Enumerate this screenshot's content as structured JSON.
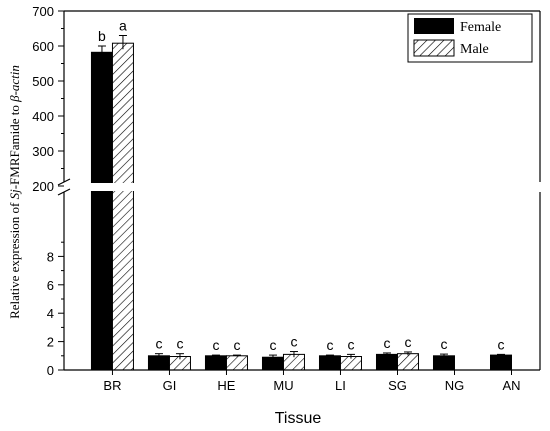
{
  "chart_data": {
    "type": "bar",
    "xlabel": "Tissue",
    "ylabel": {
      "prefix": "Relative expression of ",
      "gene_italic": "Sj",
      "gene_rest": "-FMRFamide to ",
      "ref_italic": "β-actin"
    },
    "categories": [
      "BR",
      "GI",
      "HE",
      "MU",
      "LI",
      "SG",
      "NG",
      "AN"
    ],
    "series": [
      {
        "name": "Female",
        "color": "#000000",
        "fill": "solid",
        "values": [
          582,
          1.0,
          1.0,
          0.9,
          1.0,
          1.1,
          1.0,
          1.05
        ],
        "errors": [
          18,
          0.15,
          0.05,
          0.15,
          0.05,
          0.1,
          0.12,
          0.05
        ],
        "labels": [
          "b",
          "c",
          "c",
          "c",
          "c",
          "c",
          "c",
          "c"
        ]
      },
      {
        "name": "Male",
        "color": "#000000",
        "fill": "hatched",
        "values": [
          608,
          0.95,
          1.0,
          1.1,
          0.95,
          1.15,
          null,
          null
        ],
        "errors": [
          22,
          0.2,
          0.05,
          0.2,
          0.15,
          0.12,
          null,
          null
        ],
        "labels": [
          "a",
          "c",
          "c",
          "c",
          "c",
          "c",
          null,
          null
        ]
      }
    ],
    "axis_break": {
      "lower_range": [
        0,
        10
      ],
      "lower_ticks": [
        0,
        2,
        4,
        6,
        8
      ],
      "upper_range": [
        200,
        700
      ],
      "upper_ticks": [
        200,
        300,
        400,
        500,
        600,
        700
      ]
    },
    "legend_position": "top-right",
    "grid": false
  }
}
